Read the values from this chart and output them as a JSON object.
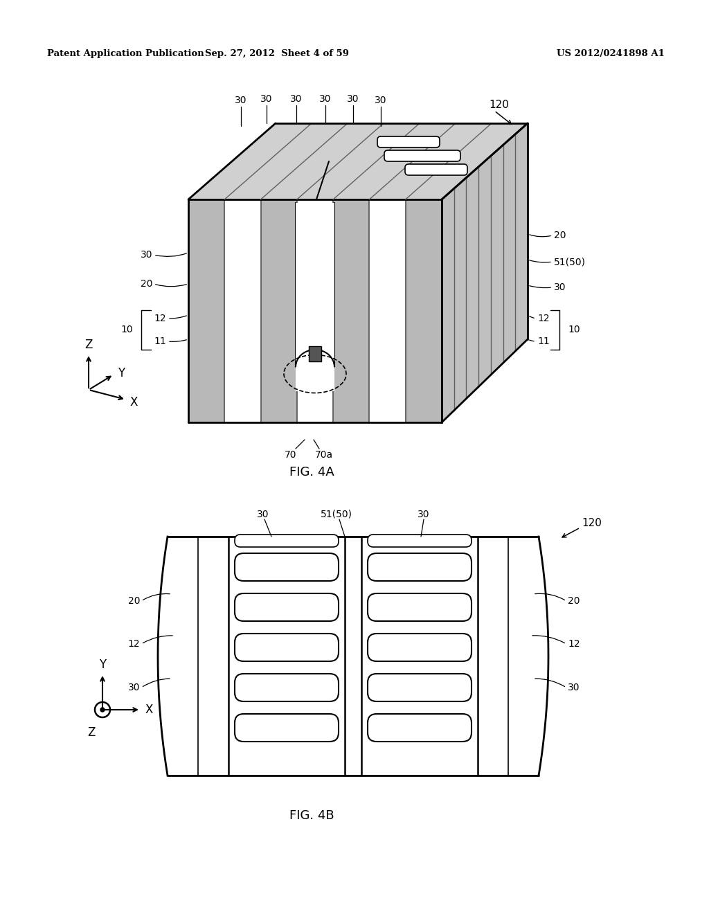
{
  "bg_color": "#ffffff",
  "line_color": "#000000",
  "header_left": "Patent Application Publication",
  "header_center": "Sep. 27, 2012  Sheet 4 of 59",
  "header_right": "US 2012/0241898 A1",
  "fig4a_label": "FIG. 4A",
  "fig4b_label": "FIG. 4B"
}
